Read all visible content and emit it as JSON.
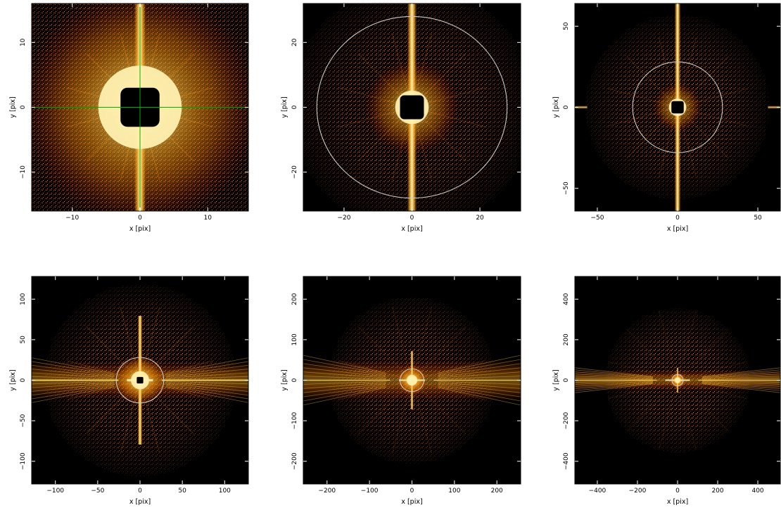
{
  "figure": {
    "colors": {
      "background": "#000000",
      "core": "#fff0b0",
      "bright": "#ffc040",
      "mid": "#ff8a00",
      "dim": "#d23000",
      "circle": "#c8c8c8",
      "crosshair": "#00b000",
      "frame": "#000000"
    },
    "panels": [
      {
        "xlabel": "x [pix]",
        "ylabel": "y [pix]",
        "xlim": [
          -16,
          16
        ],
        "ylim": [
          -16,
          16
        ],
        "xticks": [
          -10,
          0,
          10
        ],
        "yticks": [
          -10,
          0,
          10
        ],
        "xtick_labels": [
          "−10",
          "0",
          "10"
        ],
        "ytick_labels": [
          "−10",
          "0",
          "10"
        ],
        "circle_radius": null,
        "crosshair": true
      },
      {
        "xlabel": "x [pix]",
        "ylabel": "y [pix]",
        "xlim": [
          -32,
          32
        ],
        "ylim": [
          -32,
          32
        ],
        "xticks": [
          -20,
          0,
          20
        ],
        "yticks": [
          -20,
          0,
          20
        ],
        "xtick_labels": [
          "−20",
          "0",
          "20"
        ],
        "ytick_labels": [
          "−20",
          "0",
          "20"
        ],
        "circle_radius": 28,
        "crosshair": false
      },
      {
        "xlabel": "x [pix]",
        "ylabel": "y [pix]",
        "xlim": [
          -64,
          64
        ],
        "ylim": [
          -64,
          64
        ],
        "xticks": [
          -50,
          0,
          50
        ],
        "yticks": [
          -50,
          0,
          50
        ],
        "xtick_labels": [
          "−50",
          "0",
          "50"
        ],
        "ytick_labels": [
          "−50",
          "0",
          "50"
        ],
        "circle_radius": 28,
        "crosshair": false
      },
      {
        "xlabel": "x [pix]",
        "ylabel": "y [pix]",
        "xlim": [
          -128,
          128
        ],
        "ylim": [
          -128,
          128
        ],
        "xticks": [
          -100,
          -50,
          0,
          50,
          100
        ],
        "yticks": [
          -100,
          -50,
          0,
          50,
          100
        ],
        "xtick_labels": [
          "−100",
          "−50",
          "0",
          "50",
          "100"
        ],
        "ytick_labels": [
          "−100",
          "−50",
          "0",
          "50",
          "100"
        ],
        "circle_radius": 28,
        "crosshair": false
      },
      {
        "xlabel": "x [pix]",
        "ylabel": "y [pix]",
        "xlim": [
          -256,
          256
        ],
        "ylim": [
          -256,
          256
        ],
        "xticks": [
          -200,
          -100,
          0,
          100,
          200
        ],
        "yticks": [
          -200,
          -100,
          0,
          100,
          200
        ],
        "xtick_labels": [
          "−200",
          "−100",
          "0",
          "100",
          "200"
        ],
        "ytick_labels": [
          "−200",
          "−100",
          "0",
          "100",
          "200"
        ],
        "circle_radius": 28,
        "crosshair": false
      },
      {
        "xlabel": "x [pix]",
        "ylabel": "y [pix]",
        "xlim": [
          -512,
          512
        ],
        "ylim": [
          -512,
          512
        ],
        "xticks": [
          -400,
          -200,
          0,
          200,
          400
        ],
        "yticks": [
          -400,
          -200,
          0,
          200,
          400
        ],
        "xtick_labels": [
          "−400",
          "−200",
          "0",
          "200",
          "400"
        ],
        "ytick_labels": [
          "−400",
          "−200",
          "0",
          "200",
          "400"
        ],
        "circle_radius": 28,
        "crosshair": false
      }
    ]
  }
}
